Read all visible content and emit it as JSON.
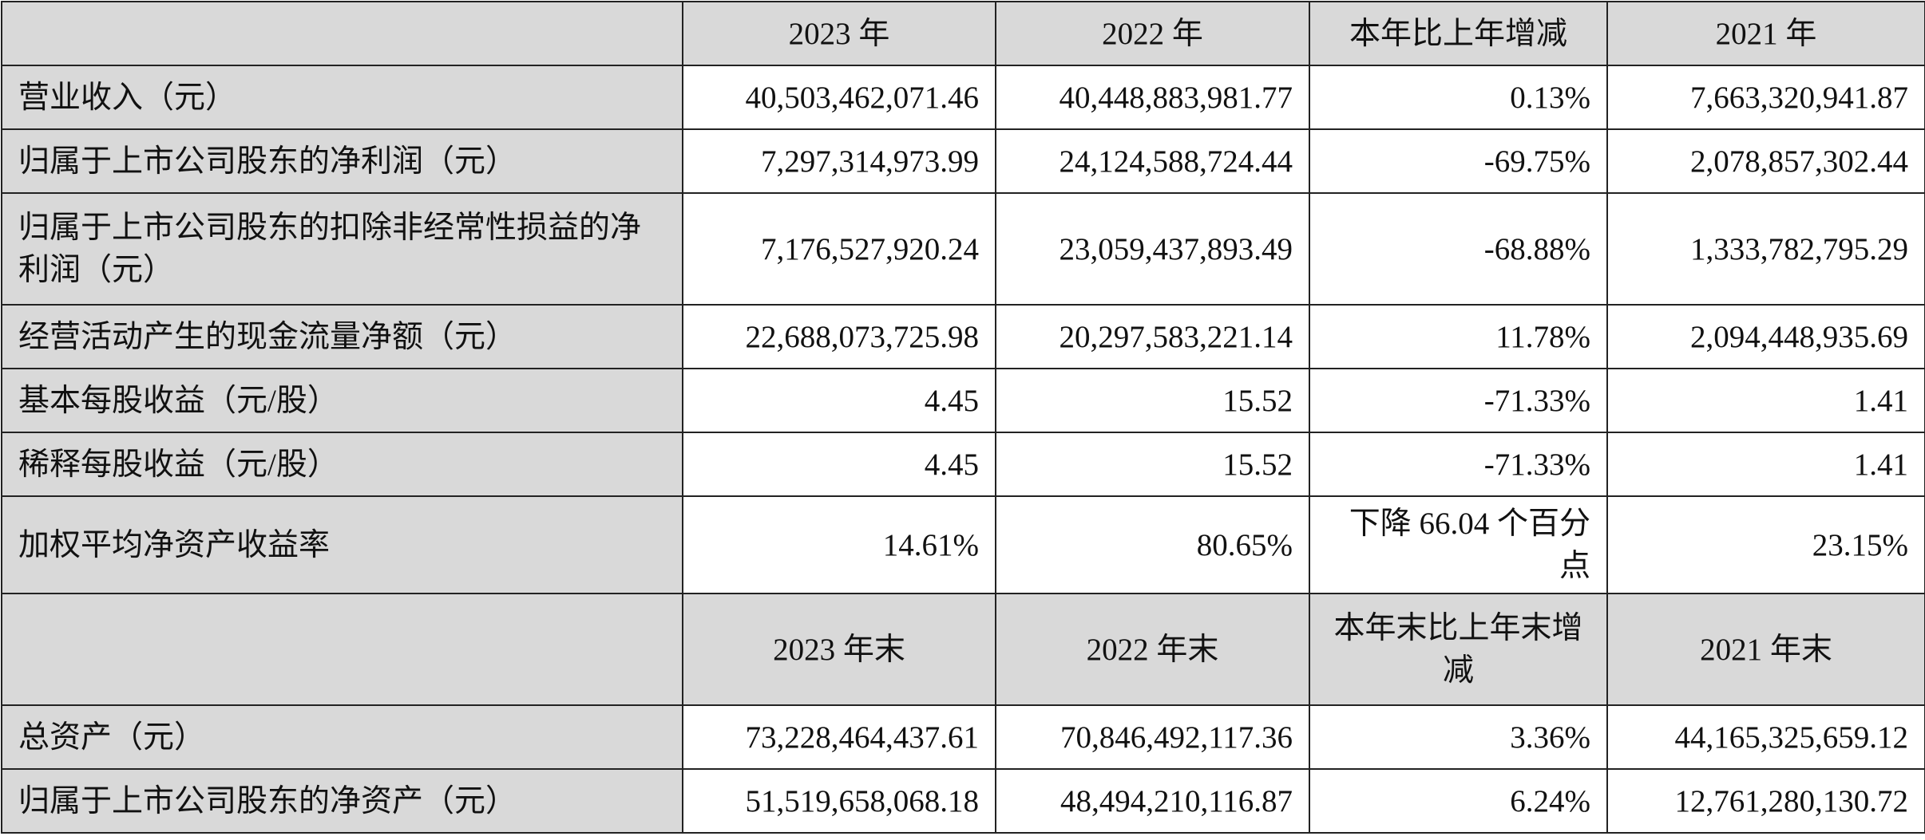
{
  "header": [
    "",
    "2023 年",
    "2022 年",
    "本年比上年增减",
    "2021 年"
  ],
  "rows": [
    {
      "label": "营业收入（元）",
      "v2023": "40,503,462,071.46",
      "v2022": "40,448,883,981.77",
      "change": "0.13%",
      "v2021": "7,663,320,941.87"
    },
    {
      "label": "归属于上市公司股东的净利润（元）",
      "v2023": "7,297,314,973.99",
      "v2022": "24,124,588,724.44",
      "change": "-69.75%",
      "v2021": "2,078,857,302.44"
    },
    {
      "label": "归属于上市公司股东的扣除非经常性损益的净利润（元）",
      "v2023": "7,176,527,920.24",
      "v2022": "23,059,437,893.49",
      "change": "-68.88%",
      "v2021": "1,333,782,795.29"
    },
    {
      "label": "经营活动产生的现金流量净额（元）",
      "v2023": "22,688,073,725.98",
      "v2022": "20,297,583,221.14",
      "change": "11.78%",
      "v2021": "2,094,448,935.69"
    },
    {
      "label": "基本每股收益（元/股）",
      "v2023": "4.45",
      "v2022": "15.52",
      "change": "-71.33%",
      "v2021": "1.41"
    },
    {
      "label": "稀释每股收益（元/股）",
      "v2023": "4.45",
      "v2022": "15.52",
      "change": "-71.33%",
      "v2021": "1.41"
    },
    {
      "label": "加权平均净资产收益率",
      "v2023": "14.61%",
      "v2022": "80.65%",
      "change": "下降 66.04 个百分点",
      "v2021": "23.15%"
    }
  ],
  "header2": [
    "",
    "2023 年末",
    "2022 年末",
    "本年末比上年末增减",
    "2021 年末"
  ],
  "rows2": [
    {
      "label": "总资产（元）",
      "v2023": "73,228,464,437.61",
      "v2022": "70,846,492,117.36",
      "change": "3.36%",
      "v2021": "44,165,325,659.12"
    },
    {
      "label": "归属于上市公司股东的净资产（元）",
      "v2023": "51,519,658,068.18",
      "v2022": "48,494,210,116.87",
      "change": "6.24%",
      "v2021": "12,761,280,130.72"
    }
  ]
}
